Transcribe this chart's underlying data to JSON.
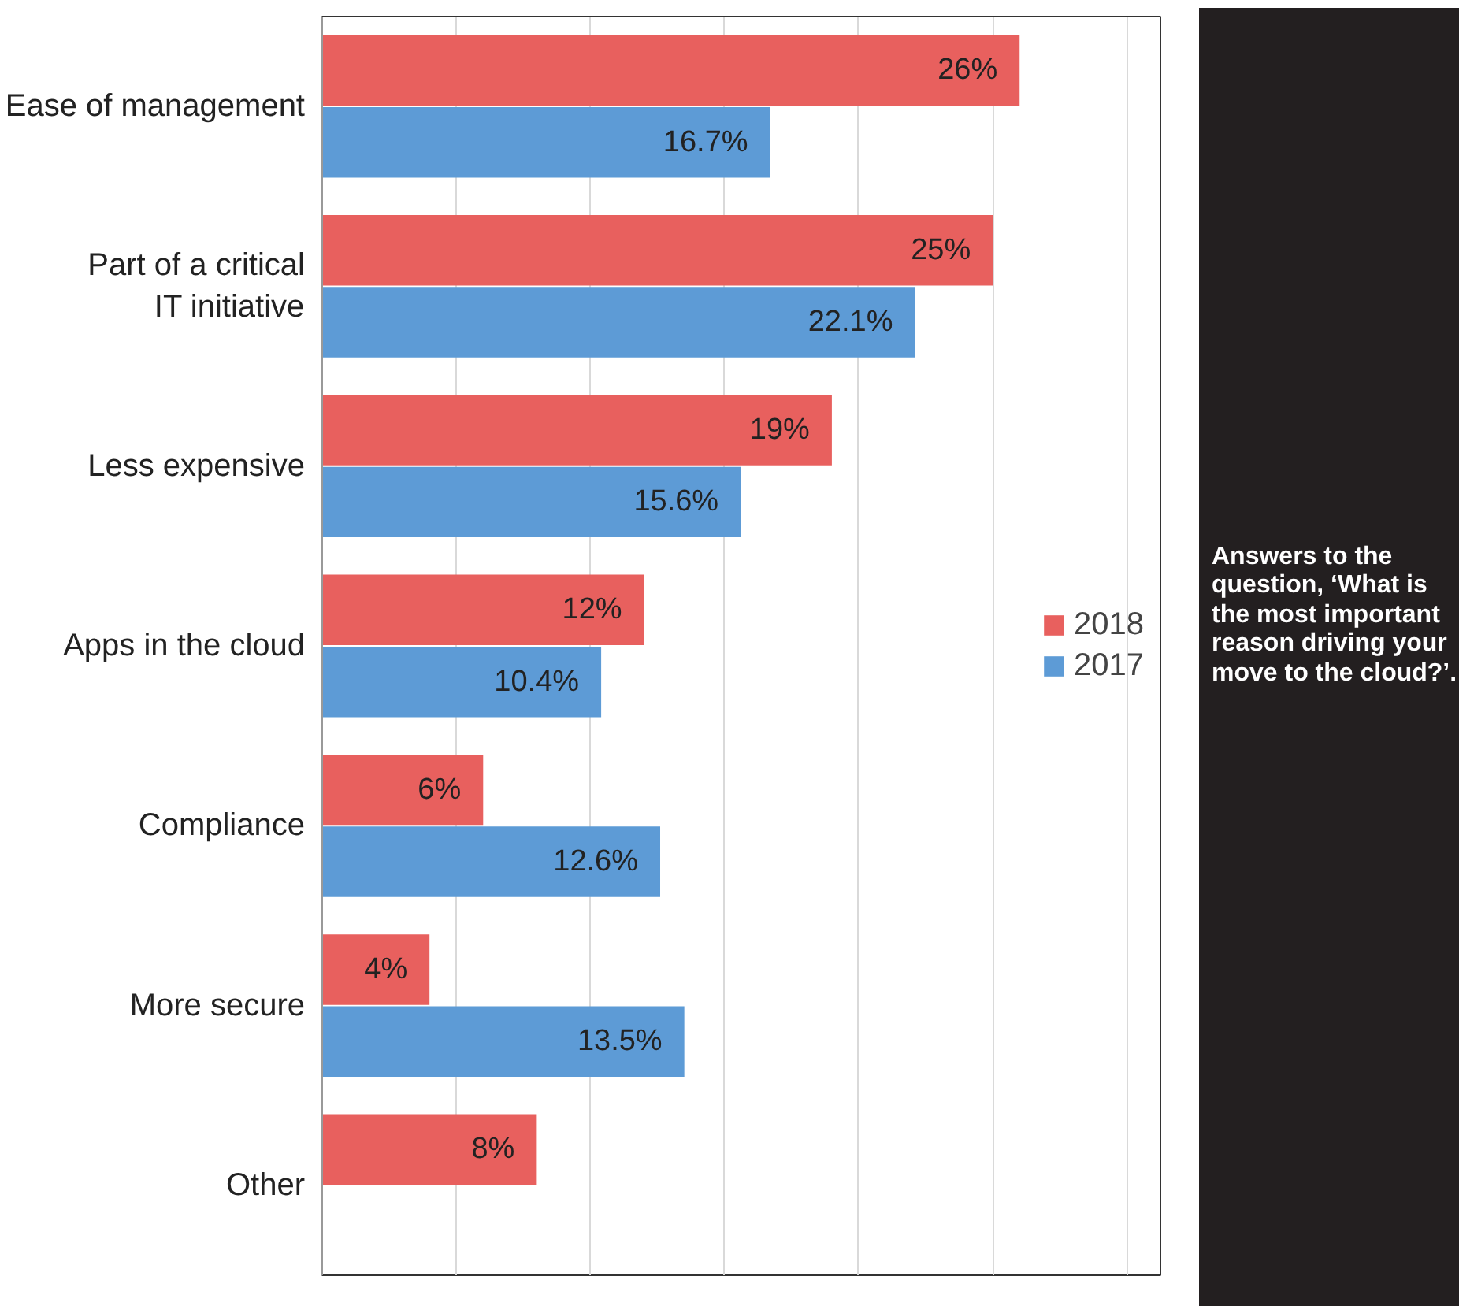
{
  "chart_data": {
    "type": "bar",
    "orientation": "horizontal",
    "categories": [
      "Ease of management",
      "Part of a critical IT initiative",
      "Less expensive",
      "Apps in the cloud",
      "Compliance",
      "More secure",
      "Other"
    ],
    "series": [
      {
        "name": "2018",
        "color": "#e8605e",
        "values": [
          26,
          25,
          19,
          12,
          6,
          4,
          8
        ],
        "value_labels": [
          "26%",
          "25%",
          "19%",
          "12%",
          "6%",
          "4%",
          "8%"
        ]
      },
      {
        "name": "2017",
        "color": "#5d9bd6",
        "values": [
          16.7,
          22.1,
          15.6,
          10.4,
          12.6,
          13.5,
          null
        ],
        "value_labels": [
          "16.7%",
          "22.1%",
          "15.6%",
          "10.4%",
          "12.6%",
          "13.5%",
          null
        ]
      }
    ],
    "xlim": [
      0,
      31.25
    ],
    "xticks": [
      {
        "value": 5,
        "label": null
      },
      {
        "value": 10,
        "label": null
      },
      {
        "value": 15,
        "label": null
      },
      {
        "value": 20,
        "label": null
      },
      {
        "value": 25,
        "label": null
      },
      {
        "value": 30,
        "label": null
      }
    ],
    "tick_labels": "y",
    "grid": "x",
    "legend": "right",
    "annotations": [
      "Answers to the question, ‘What is the most important reason driving your move to the cloud?’."
    ]
  }
}
